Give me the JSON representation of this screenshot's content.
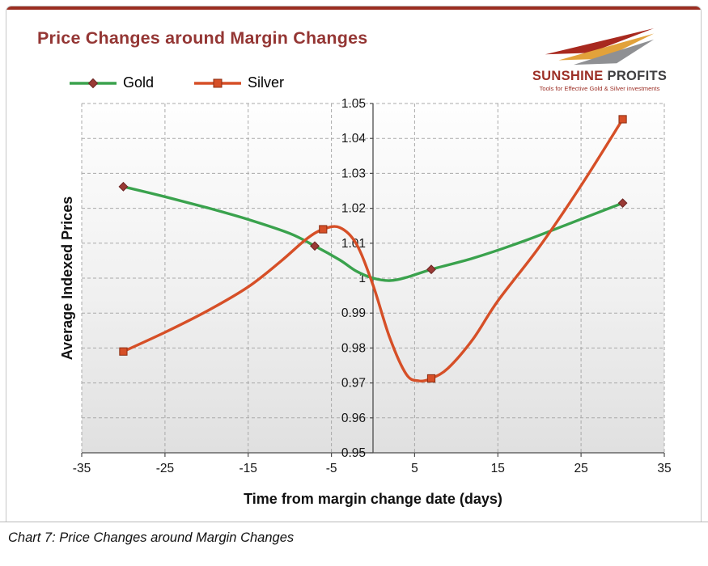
{
  "page": {
    "accent_color": "#9b2d20",
    "border_color": "#c6c6c6",
    "background": "#ffffff"
  },
  "header": {
    "title": "Price Changes around Margin Changes",
    "title_color": "#943634"
  },
  "logo": {
    "name_primary": "SUNSHINE",
    "name_secondary": "PROFITS",
    "primary_color": "#9c2f26",
    "secondary_color": "#3f3f41",
    "tagline": "Tools for Effective Gold & Silver investments",
    "tagline_color": "#9c2f26",
    "arrow_colors": [
      "#a8291f",
      "#e2a23b",
      "#8f9093"
    ]
  },
  "caption": "Chart 7: Price Changes around Margin Changes",
  "chart_data": {
    "type": "line",
    "title": "Price Changes around Margin Changes",
    "xlabel": "Time from margin change date (days)",
    "ylabel": "Average Indexed Prices",
    "xlim": [
      -35,
      35
    ],
    "ylim": [
      0.95,
      1.05
    ],
    "x_ticks": [
      -35,
      -25,
      -15,
      -5,
      5,
      15,
      25,
      35
    ],
    "y_ticks": [
      0.95,
      0.96,
      0.97,
      0.98,
      0.99,
      1,
      1.01,
      1.02,
      1.03,
      1.04,
      1.05
    ],
    "y_tick_labels": [
      "0.95",
      "0.96",
      "0.97",
      "0.98",
      "0.99",
      "1",
      "1.01",
      "1.02",
      "1.03",
      "1.04",
      "1.05"
    ],
    "grid": "dashed-both",
    "axis_cross_x": 0,
    "legend_position": "top-left",
    "plot_bg_top": "#fefefe",
    "plot_bg_bottom": "#e0e0e0",
    "gridline_color": "#a9a9a9",
    "axis_color": "#4d4d4d",
    "series": [
      {
        "name": "Gold",
        "color": "#3aa24d",
        "marker": "diamond",
        "marker_color": "#9a3a35",
        "marker_stroke": "#6b2422",
        "curve": [
          [
            -30,
            1.0262
          ],
          [
            -25,
            1.0233
          ],
          [
            -20,
            1.0202
          ],
          [
            -15,
            1.0168
          ],
          [
            -10,
            1.0128
          ],
          [
            -7,
            1.0092
          ],
          [
            -4,
            1.0052
          ],
          [
            -2,
            1.002
          ],
          [
            0,
            1.0
          ],
          [
            2,
            0.9993
          ],
          [
            4,
            1.0002
          ],
          [
            7,
            1.0025
          ],
          [
            12,
            1.0057
          ],
          [
            18,
            1.0105
          ],
          [
            24,
            1.016
          ],
          [
            30,
            1.0215
          ]
        ],
        "markers": [
          [
            -30,
            1.0262
          ],
          [
            -7,
            1.0092
          ],
          [
            7,
            1.0025
          ],
          [
            30,
            1.0215
          ]
        ]
      },
      {
        "name": "Silver",
        "color": "#d64f27",
        "marker": "square",
        "marker_color": "#d64f27",
        "marker_stroke": "#8c2e12",
        "curve": [
          [
            -30,
            0.979
          ],
          [
            -25,
            0.9845
          ],
          [
            -20,
            0.9905
          ],
          [
            -15,
            0.9975
          ],
          [
            -11,
            1.005
          ],
          [
            -8,
            1.0112
          ],
          [
            -6,
            1.014
          ],
          [
            -4,
            1.0145
          ],
          [
            -2,
            1.0098
          ],
          [
            0,
            0.998
          ],
          [
            2,
            0.983
          ],
          [
            4,
            0.9725
          ],
          [
            5.5,
            0.9706
          ],
          [
            7,
            0.9713
          ],
          [
            9,
            0.9742
          ],
          [
            12,
            0.9825
          ],
          [
            15,
            0.9935
          ],
          [
            20,
            1.009
          ],
          [
            25,
            1.0265
          ],
          [
            30,
            1.0455
          ]
        ],
        "markers": [
          [
            -30,
            0.979
          ],
          [
            -6,
            1.014
          ],
          [
            7,
            0.9713
          ],
          [
            30,
            1.0455
          ]
        ]
      }
    ]
  }
}
